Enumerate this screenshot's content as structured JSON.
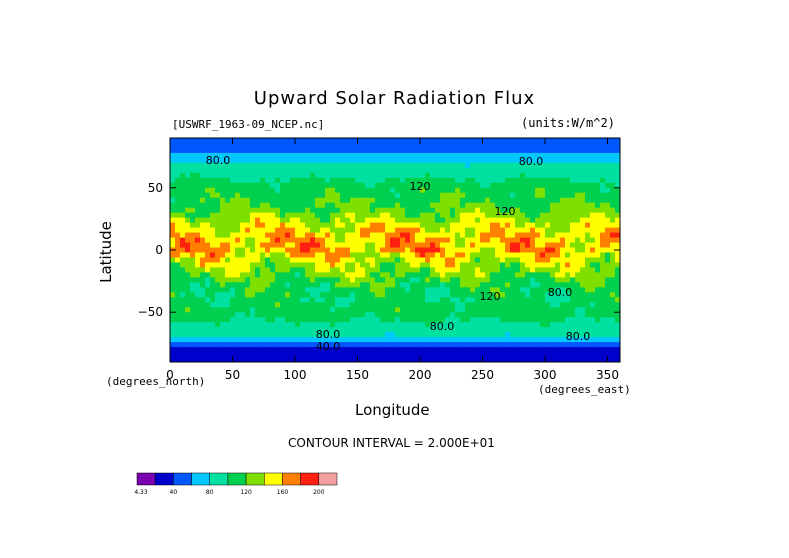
{
  "chart_data": {
    "type": "heatmap",
    "title": "Upward Solar Radiation Flux",
    "source_label": "[USWRF_1963-09_NCEP.nc]",
    "units_label": "(units:W/m^2)",
    "xlabel": "Longitude",
    "ylabel": "Latitude",
    "x_units": "(degrees_east)",
    "y_units": "(degrees_north)",
    "xlim": [
      0,
      360
    ],
    "ylim": [
      -90,
      90
    ],
    "x_ticks": [
      "0",
      "50",
      "100",
      "150",
      "200",
      "250",
      "300",
      "350"
    ],
    "y_ticks": [
      "50",
      "0",
      "−50"
    ],
    "x_tick_values": [
      0,
      50,
      100,
      150,
      200,
      250,
      300,
      350
    ],
    "y_tick_values": [
      50,
      0,
      -50
    ],
    "contour_interval_label": "CONTOUR INTERVAL = 2.000E+01",
    "contour_labels": [
      "80.0",
      "120",
      "80.0",
      "80.0",
      "80.0",
      "40.0",
      "120",
      "120",
      "80.0",
      "80.0"
    ],
    "colorbar": {
      "labels": [
        "4.33",
        "40",
        "80",
        "120",
        "160",
        "200"
      ],
      "colors": [
        "#7a00b0",
        "#0000cd",
        "#0057ff",
        "#00c8ff",
        "#00e0a0",
        "#00d050",
        "#7fe000",
        "#ffff00",
        "#ff8000",
        "#ff2010",
        "#f4a0a0"
      ]
    },
    "latitude_profile": [
      {
        "lat": -90,
        "value": 20
      },
      {
        "lat": -80,
        "value": 40
      },
      {
        "lat": -70,
        "value": 80
      },
      {
        "lat": -60,
        "value": 95
      },
      {
        "lat": -50,
        "value": 110
      },
      {
        "lat": -40,
        "value": 105
      },
      {
        "lat": -30,
        "value": 110
      },
      {
        "lat": -20,
        "value": 125
      },
      {
        "lat": -10,
        "value": 140
      },
      {
        "lat": 0,
        "value": 160
      },
      {
        "lat": 10,
        "value": 160
      },
      {
        "lat": 20,
        "value": 145
      },
      {
        "lat": 30,
        "value": 125
      },
      {
        "lat": 40,
        "value": 115
      },
      {
        "lat": 50,
        "value": 110
      },
      {
        "lat": 60,
        "value": 95
      },
      {
        "lat": 70,
        "value": 80
      },
      {
        "lat": 80,
        "value": 60
      },
      {
        "lat": 90,
        "value": 55
      }
    ]
  }
}
